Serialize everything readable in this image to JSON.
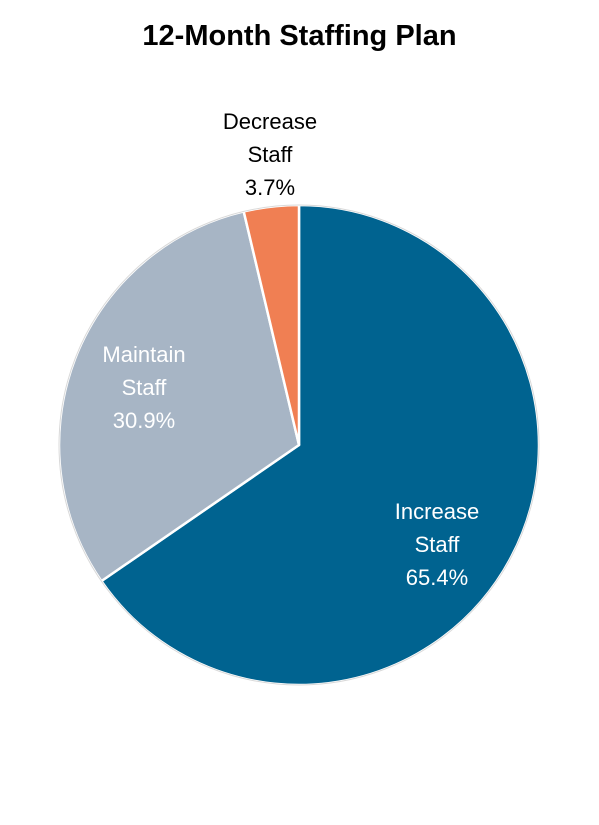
{
  "chart_data": {
    "type": "pie",
    "title": "12-Month Staffing Plan",
    "slices": [
      {
        "label": "Increase Staff",
        "label_lines": [
          "Increase",
          "Staff"
        ],
        "value": 65.4,
        "value_label": "65.4%",
        "color": "#006390",
        "label_color": "#ffffff"
      },
      {
        "label": "Maintain Staff",
        "label_lines": [
          "Maintain",
          "Staff"
        ],
        "value": 30.9,
        "value_label": "30.9%",
        "color": "#a7b5c5",
        "label_color": "#ffffff"
      },
      {
        "label": "Decrease Staff",
        "label_lines": [
          "Decrease",
          "Staff"
        ],
        "value": 3.7,
        "value_label": "3.7%",
        "color": "#f07f53",
        "label_color": "#000000"
      }
    ]
  }
}
